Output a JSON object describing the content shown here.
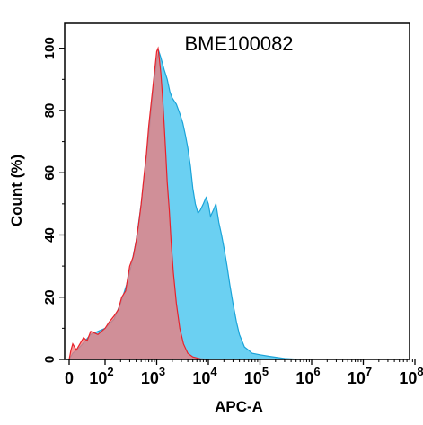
{
  "chart_data": {
    "type": "area",
    "title": "BME100082",
    "xlabel": "APC-A",
    "ylabel": "Count  (%)",
    "x_scale": "log",
    "x_ticks": [
      {
        "value": 0,
        "label": "0",
        "exp": ""
      },
      {
        "value": 100,
        "label": "10",
        "exp": "2"
      },
      {
        "value": 1000,
        "label": "10",
        "exp": "3"
      },
      {
        "value": 10000,
        "label": "10",
        "exp": "4"
      },
      {
        "value": 100000,
        "label": "10",
        "exp": "5"
      },
      {
        "value": 1000000,
        "label": "10",
        "exp": "6"
      },
      {
        "value": 10000000,
        "label": "10",
        "exp": "7"
      },
      {
        "value": 100000000,
        "label": "10",
        "exp": "8"
      }
    ],
    "y_ticks": [
      0,
      20,
      40,
      60,
      80,
      100
    ],
    "ylim": [
      0,
      108
    ],
    "grid": false,
    "series": [
      {
        "color_fill": "#5bcbf1",
        "color_line": "#1aa3d8",
        "points": [
          [
            0,
            0
          ],
          [
            10,
            2
          ],
          [
            30,
            4
          ],
          [
            60,
            8
          ],
          [
            100,
            10
          ],
          [
            150,
            13
          ],
          [
            200,
            18
          ],
          [
            260,
            24
          ],
          [
            320,
            30
          ],
          [
            400,
            38
          ],
          [
            500,
            50
          ],
          [
            600,
            62
          ],
          [
            700,
            72
          ],
          [
            800,
            82
          ],
          [
            900,
            90
          ],
          [
            1000,
            96
          ],
          [
            1100,
            99
          ],
          [
            1200,
            97
          ],
          [
            1400,
            93
          ],
          [
            1600,
            90
          ],
          [
            1800,
            86
          ],
          [
            2000,
            84
          ],
          [
            2400,
            82
          ],
          [
            2800,
            79
          ],
          [
            3200,
            76
          ],
          [
            3600,
            72
          ],
          [
            4000,
            68
          ],
          [
            4500,
            62
          ],
          [
            5000,
            55
          ],
          [
            5600,
            50
          ],
          [
            6300,
            47
          ],
          [
            7000,
            48
          ],
          [
            8000,
            50
          ],
          [
            9000,
            52
          ],
          [
            10000,
            50
          ],
          [
            11000,
            46
          ],
          [
            12500,
            48
          ],
          [
            14000,
            50
          ],
          [
            16000,
            44
          ],
          [
            18000,
            40
          ],
          [
            20000,
            36
          ],
          [
            23000,
            30
          ],
          [
            26000,
            24
          ],
          [
            30000,
            18
          ],
          [
            35000,
            12
          ],
          [
            40000,
            8
          ],
          [
            50000,
            4
          ],
          [
            60000,
            3
          ],
          [
            70000,
            2
          ],
          [
            100000,
            1.5
          ],
          [
            150000,
            1
          ],
          [
            300000,
            0.3
          ],
          [
            600000,
            0
          ]
        ]
      },
      {
        "color_fill": "#f17a7a",
        "color_line": "#e8222b",
        "points": [
          [
            0,
            0
          ],
          [
            5,
            3
          ],
          [
            10,
            5
          ],
          [
            20,
            3
          ],
          [
            30,
            5
          ],
          [
            40,
            7
          ],
          [
            50,
            6
          ],
          [
            60,
            9
          ],
          [
            80,
            8
          ],
          [
            100,
            10
          ],
          [
            120,
            12
          ],
          [
            150,
            14
          ],
          [
            180,
            16
          ],
          [
            210,
            20
          ],
          [
            250,
            22
          ],
          [
            300,
            30
          ],
          [
            350,
            33
          ],
          [
            400,
            38
          ],
          [
            450,
            44
          ],
          [
            500,
            50
          ],
          [
            560,
            58
          ],
          [
            630,
            66
          ],
          [
            700,
            75
          ],
          [
            800,
            84
          ],
          [
            900,
            92
          ],
          [
            1000,
            99
          ],
          [
            1060,
            100
          ],
          [
            1120,
            97
          ],
          [
            1200,
            92
          ],
          [
            1300,
            84
          ],
          [
            1400,
            75
          ],
          [
            1500,
            66
          ],
          [
            1600,
            57
          ],
          [
            1750,
            48
          ],
          [
            1900,
            38
          ],
          [
            2100,
            28
          ],
          [
            2400,
            18
          ],
          [
            2800,
            10
          ],
          [
            3300,
            5
          ],
          [
            4000,
            2
          ],
          [
            5000,
            0.8
          ],
          [
            7000,
            0.2
          ],
          [
            10000,
            0
          ]
        ]
      }
    ]
  }
}
